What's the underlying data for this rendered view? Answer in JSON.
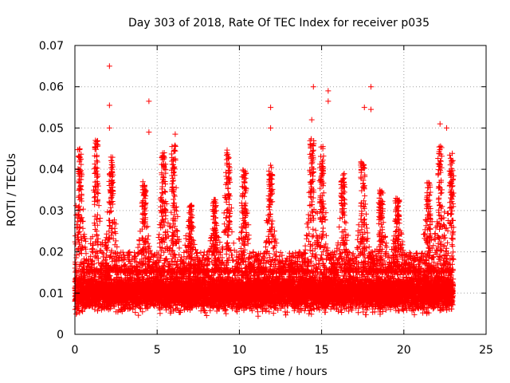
{
  "chart_data": {
    "type": "scatter",
    "title": "Day 303 of 2018, Rate Of TEC Index for receiver p035",
    "xlabel": "GPS time / hours",
    "ylabel": "ROTI / TECUs",
    "xlim": [
      0,
      25
    ],
    "ylim": [
      0,
      0.07
    ],
    "xticks": [
      0,
      5,
      10,
      15,
      20,
      25
    ],
    "xtick_labels": [
      "0",
      "5",
      "10",
      "15",
      "20",
      "25"
    ],
    "yticks": [
      0,
      0.01,
      0.02,
      0.03,
      0.04,
      0.05,
      0.06,
      0.07
    ],
    "ytick_labels": [
      "0",
      "0.01",
      "0.02",
      "0.03",
      "0.04",
      "0.05",
      "0.06",
      "0.07"
    ],
    "grid": true,
    "marker": "+",
    "marker_color": "#ff0000",
    "data_x_range": [
      0,
      23
    ],
    "typical_band": [
      0.005,
      0.015
    ],
    "notable_points": [
      {
        "x": 2.1,
        "y": 0.065
      },
      {
        "x": 2.1,
        "y": 0.0555
      },
      {
        "x": 2.1,
        "y": 0.05
      },
      {
        "x": 4.5,
        "y": 0.0565
      },
      {
        "x": 4.5,
        "y": 0.049
      },
      {
        "x": 6.1,
        "y": 0.0485
      },
      {
        "x": 11.9,
        "y": 0.055
      },
      {
        "x": 11.9,
        "y": 0.05
      },
      {
        "x": 14.5,
        "y": 0.06
      },
      {
        "x": 14.4,
        "y": 0.052
      },
      {
        "x": 15.4,
        "y": 0.059
      },
      {
        "x": 15.4,
        "y": 0.0565
      },
      {
        "x": 17.6,
        "y": 0.055
      },
      {
        "x": 18.0,
        "y": 0.06
      },
      {
        "x": 18.0,
        "y": 0.0545
      },
      {
        "x": 22.2,
        "y": 0.051
      },
      {
        "x": 22.6,
        "y": 0.05
      }
    ],
    "burst_envelope": [
      {
        "x": 0.3,
        "y": 0.045
      },
      {
        "x": 1.3,
        "y": 0.047
      },
      {
        "x": 2.2,
        "y": 0.043
      },
      {
        "x": 4.2,
        "y": 0.037
      },
      {
        "x": 5.4,
        "y": 0.044
      },
      {
        "x": 6.0,
        "y": 0.046
      },
      {
        "x": 7.0,
        "y": 0.032
      },
      {
        "x": 8.5,
        "y": 0.033
      },
      {
        "x": 9.3,
        "y": 0.045
      },
      {
        "x": 10.3,
        "y": 0.04
      },
      {
        "x": 11.9,
        "y": 0.041
      },
      {
        "x": 14.4,
        "y": 0.048
      },
      {
        "x": 15.0,
        "y": 0.047
      },
      {
        "x": 16.3,
        "y": 0.039
      },
      {
        "x": 17.5,
        "y": 0.042
      },
      {
        "x": 18.6,
        "y": 0.035
      },
      {
        "x": 19.6,
        "y": 0.033
      },
      {
        "x": 21.5,
        "y": 0.037
      },
      {
        "x": 22.2,
        "y": 0.047
      },
      {
        "x": 22.9,
        "y": 0.044
      }
    ]
  }
}
